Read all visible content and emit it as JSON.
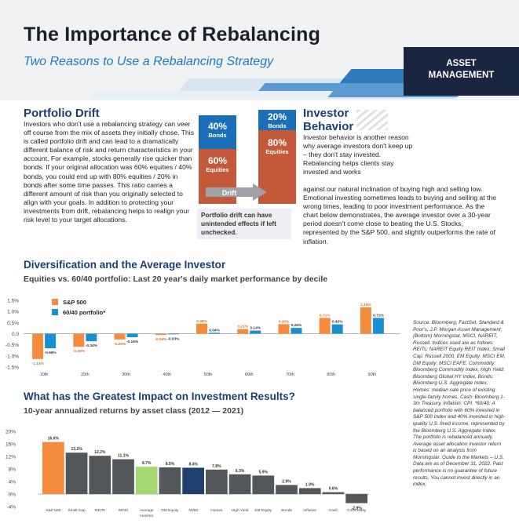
{
  "header": {
    "title": "The Importance of Rebalancing",
    "subtitle": "Two Reasons to Use a Rebalancing Strategy",
    "tag_line1": "ASSET",
    "tag_line2": "MANAGEMENT"
  },
  "portfolio_drift": {
    "heading": "Portfolio Drift",
    "text": "Investors who don't use a rebalancing strategy can veer off course from the mix of assets they initially chose. This is called portfolio drift and can lead to a dramatically different balance of risk and return characteristics in your account. For example, stocks generally rise quicker than bonds. If your original allocation was 60% equities / 40% bonds, you could end up with 80% equities / 20% in bonds after some time passes. This ratio carries a different amount of risk than you originally selected to align with your goals. In addition to protecting your investments from drift, rebalancing helps to realign your risk level to your target allocations."
  },
  "drift_graphic": {
    "left_top_pct": "40%",
    "left_top_label": "Bonds",
    "left_bottom_pct": "60%",
    "left_bottom_label": "Equities",
    "right_top_pct": "20%",
    "right_top_label": "Bonds",
    "right_bottom_pct": "80%",
    "right_bottom_label": "Equities",
    "arrow_label": "Drift",
    "callout": "Portfolio drift can have unintended effects if left unchecked.",
    "colors": {
      "bonds": "#1a6fb8",
      "equities": "#c4593a"
    }
  },
  "investor_behavior": {
    "heading_line1": "Investor",
    "heading_line2": "Behavior",
    "text_narrow": "Investor behavior is another reason why average investors don't keep up – they don't stay invested. Rebalancing helps clients stay invested and works",
    "text_wide": "against our natural inclination of buying high and selling low. Emotional investing sometimes leads to buying and selling at the wrong times, leading to poor investment performance. As the chart below demonstrates, the average investor over a 30-year period doesn't come close to beating the U.S. Stocks, represented by the S&P 500, and slightly outperforms the rate of inflation."
  },
  "chart_data": [
    {
      "type": "bar",
      "title": "Diversification and the Average Investor",
      "subtitle": "Equities vs. 60/40 portfolio: Last 20 year's daily market performance by decile",
      "categories": [
        "10th",
        "20th",
        "30th",
        "40th",
        "50th",
        "60th",
        "70th",
        "80th",
        "90th"
      ],
      "series": [
        {
          "name": "S&P 500",
          "color": "#f58b3c",
          "values": [
            -1.14,
            -0.59,
            -0.26,
            -0.06,
            0.45,
            0.21,
            0.43,
            0.71,
            1.19
          ],
          "labels": [
            "-1.14%",
            "-0.59%",
            "-0.26%",
            "-0.06%",
            "0.45%",
            "0.21%",
            "0.43%",
            "0.71%",
            "1.19%"
          ]
        },
        {
          "name": "60/40 portfolio*",
          "color": "#1a90d0",
          "values": [
            -0.66,
            -0.34,
            -0.16,
            -0.03,
            0.04,
            0.14,
            0.26,
            0.42,
            0.71
          ],
          "labels": [
            "-0.66%",
            "-0.34%",
            "-0.16%",
            "-0.03%",
            "0.04%",
            "0.14%",
            "0.26%",
            "0.42%",
            "0.71%"
          ]
        }
      ],
      "yticks": [
        "1.5%",
        "1.0%",
        "0.5%",
        "0.0",
        "-0.5%",
        "-1.0%",
        "-1.5%"
      ],
      "ylim": [
        -1.5,
        1.5
      ],
      "legend": "top-left"
    },
    {
      "type": "bar",
      "title": "What has the Greatest Impact on Investment Results?",
      "subtitle": "10-year annualized returns by asset class (2012 — 2021)",
      "categories": [
        "S&P 500",
        "Small Cap",
        "REITs",
        "60/40",
        "Average Investor",
        "DM Equity",
        "40/60",
        "Homes",
        "High Yield",
        "EM Equity",
        "Bonds",
        "Inflation",
        "Cash",
        "Commodity"
      ],
      "category_lines": [
        [
          "S&P 500"
        ],
        [
          "Small Cap"
        ],
        [
          "REITs"
        ],
        [
          "60/40"
        ],
        [
          "Average",
          "Investor"
        ],
        [
          "DM Equity"
        ],
        [
          "40/60"
        ],
        [
          "Homes"
        ],
        [
          "High Yield"
        ],
        [
          "EM Equity"
        ],
        [
          "Bonds"
        ],
        [
          "Inflation"
        ],
        [
          "Cash"
        ],
        [
          "Commodity"
        ]
      ],
      "values": [
        16.6,
        13.2,
        12.2,
        11.1,
        8.7,
        8.5,
        8.4,
        7.8,
        6.3,
        5.9,
        2.9,
        1.9,
        0.6,
        -2.9
      ],
      "labels": [
        "16.6%",
        "13.2%",
        "12.2%",
        "11.1%",
        "8.7%",
        "8.5%",
        "8.4%",
        "7.8%",
        "6.3%",
        "5.9%",
        "2.9%",
        "1.9%",
        "0.6%",
        "-2.9%"
      ],
      "colors": [
        "#f58b3c",
        "#53575a",
        "#53575a",
        "#53575a",
        "#a3d873",
        "#53575a",
        "#1f3f6e",
        "#53575a",
        "#53575a",
        "#53575a",
        "#53575a",
        "#53575a",
        "#53575a",
        "#53575a"
      ],
      "yticks": [
        "20%",
        "16%",
        "12%",
        "8%",
        "4%",
        "0%",
        "-4%"
      ],
      "ylim": [
        -4,
        20
      ]
    }
  ],
  "source_note": "Source: Bloomberg, FactSet, Standard & Poor's, J.P. Morgan Asset Management; (Bottom) Morningstar, MSCI, NAREIT, Russell. Indices used are as follows: REITs: NAREIT Equity REIT Index, Small Cap: Russell 2000, EM Equity: MSCI EM, DM Equity: MSCI EAFE, Commodity: Bloomberg Commodity Index, High Yield: Bloomberg Global HY Index, Bonds: Bloomberg U.S. Aggregate Index, Homes: median sale price of existing single-family homes, Cash: Bloomberg 1-3m Treasury, Inflation: CPI. *60/40: A balanced portfolio with 60% invested in S&P 500 Index and 40% invested in high-quality U.S. fixed income, represented by the Bloomberg U.S. Aggregate Index. The portfolio is rebalanced annually. Average asset allocation investor return is based on an analysis from Morningstar. Guide to the Markets – U.S. Data are as of December 31, 2022. Past performance is no guarantee of future results. You cannot invest directly in an index."
}
